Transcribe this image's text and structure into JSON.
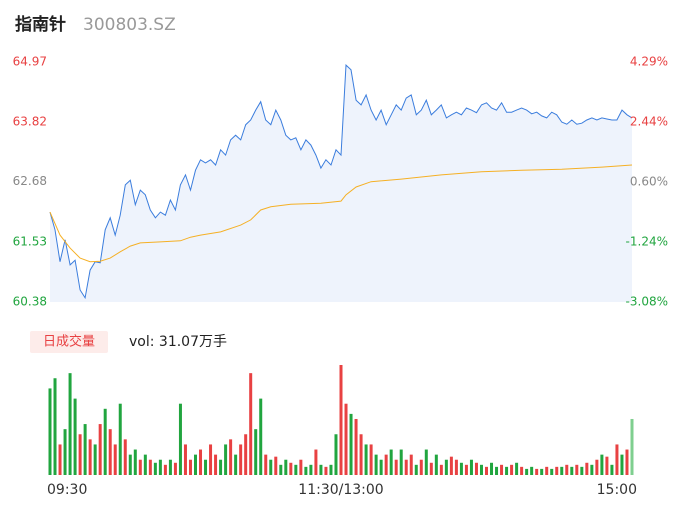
{
  "chart_data": {
    "type": "intraday",
    "title": "指南针",
    "subtitle": "300803.SZ",
    "xlim": [
      0,
      116
    ],
    "xticks": [
      {
        "value": 0,
        "label": "09:30"
      },
      {
        "value": 58,
        "label": "11:30/13:00"
      },
      {
        "value": 116,
        "label": "15:00"
      }
    ],
    "ylim": [
      60.38,
      64.97
    ],
    "yticks": [
      64.97,
      63.82,
      62.68,
      61.53,
      60.38
    ],
    "y2lim": [
      -3.08,
      4.29
    ],
    "y2ticks": [
      {
        "value": 4.29,
        "label": "4.29%"
      },
      {
        "value": 2.44,
        "label": "2.44%"
      },
      {
        "value": 0.6,
        "label": "0.60%"
      },
      {
        "value": -1.24,
        "label": "-1.24%"
      },
      {
        "value": -3.08,
        "label": "-3.08%"
      }
    ],
    "tick_colors": [
      "#e84142",
      "#e84142",
      "#888888",
      "#21a53f",
      "#21a53f"
    ],
    "series": [
      {
        "color": "#3b7ddd",
        "fill": "#eef3fc",
        "values": [
          62.1,
          61.76,
          61.15,
          61.57,
          61.09,
          61.18,
          60.61,
          60.46,
          60.99,
          61.15,
          61.13,
          61.76,
          61.99,
          61.66,
          62.04,
          62.62,
          62.71,
          62.24,
          62.52,
          62.43,
          62.14,
          61.99,
          62.1,
          62.04,
          62.33,
          62.14,
          62.62,
          62.81,
          62.52,
          62.9,
          63.1,
          63.04,
          63.1,
          63.0,
          63.29,
          63.19,
          63.48,
          63.57,
          63.48,
          63.77,
          63.86,
          64.05,
          64.21,
          63.86,
          63.77,
          64.05,
          63.86,
          63.57,
          63.48,
          63.52,
          63.29,
          63.48,
          63.38,
          63.19,
          62.94,
          63.1,
          63.0,
          63.29,
          63.19,
          64.91,
          64.82,
          64.24,
          64.15,
          64.34,
          64.05,
          63.86,
          64.05,
          63.77,
          63.96,
          64.15,
          64.05,
          64.28,
          64.34,
          63.96,
          64.05,
          64.24,
          63.96,
          64.05,
          64.15,
          63.9,
          63.96,
          64.01,
          63.96,
          64.09,
          64.05,
          64.0,
          64.15,
          64.19,
          64.09,
          64.05,
          64.19,
          64.01,
          64.01,
          64.05,
          64.09,
          64.05,
          63.98,
          64.01,
          63.94,
          63.9,
          64.01,
          63.96,
          63.82,
          63.78,
          63.86,
          63.78,
          63.8,
          63.86,
          63.9,
          63.86,
          63.9,
          63.88,
          63.86,
          63.86,
          64.05,
          63.96,
          63.9
        ]
      },
      {
        "color": "#f5b025",
        "x": [
          0,
          2,
          4,
          6,
          8,
          10,
          12,
          14,
          16,
          18,
          22,
          26,
          28,
          30,
          34,
          38,
          40,
          42,
          44,
          48,
          54,
          58,
          59,
          61,
          64,
          70,
          78,
          86,
          94,
          102,
          110,
          116
        ],
        "values": [
          62.1,
          61.66,
          61.41,
          61.22,
          61.15,
          61.16,
          61.22,
          61.34,
          61.45,
          61.51,
          61.53,
          61.55,
          61.62,
          61.66,
          61.72,
          61.85,
          61.95,
          62.14,
          62.2,
          62.25,
          62.27,
          62.31,
          62.43,
          62.58,
          62.68,
          62.73,
          62.81,
          62.87,
          62.9,
          62.92,
          62.96,
          63.0
        ]
      }
    ],
    "volume_label": "日成交量",
    "volume_text": "vol: 31.07万手",
    "volume": {
      "values": [
        3825,
        4275,
        1350,
        2025,
        4500,
        3375,
        1800,
        2250,
        1575,
        1350,
        2250,
        2925,
        2025,
        1350,
        3150,
        1575,
        900,
        1125,
        675,
        900,
        675,
        540,
        675,
        450,
        675,
        540,
        3150,
        1350,
        675,
        900,
        1125,
        675,
        1350,
        900,
        675,
        1350,
        1575,
        900,
        1350,
        1800,
        4500,
        2025,
        3375,
        900,
        675,
        810,
        450,
        675,
        540,
        450,
        675,
        360,
        450,
        1125,
        450,
        360,
        450,
        1800,
        4860,
        3150,
        2700,
        2475,
        1800,
        1350,
        1350,
        900,
        675,
        900,
        1125,
        675,
        1125,
        675,
        900,
        450,
        675,
        1125,
        540,
        900,
        450,
        675,
        810,
        675,
        540,
        450,
        675,
        540,
        450,
        360,
        540,
        360,
        450,
        360,
        450,
        540,
        360,
        270,
        360,
        270,
        270,
        360,
        270,
        360,
        360,
        450,
        360,
        450,
        360,
        540,
        450,
        675,
        900,
        810,
        450,
        1350,
        900,
        1125,
        2475
      ],
      "colors": [
        "#21a53f",
        "#21a53f",
        "#e84142",
        "#21a53f",
        "#21a53f",
        "#21a53f",
        "#e84142",
        "#21a53f",
        "#e84142",
        "#21a53f",
        "#e84142",
        "#21a53f",
        "#e84142",
        "#e84142",
        "#21a53f",
        "#e84142",
        "#21a53f",
        "#21a53f",
        "#e84142",
        "#21a53f",
        "#e84142",
        "#21a53f",
        "#21a53f",
        "#e84142",
        "#21a53f",
        "#e84142",
        "#21a53f",
        "#e84142",
        "#e84142",
        "#21a53f",
        "#e84142",
        "#21a53f",
        "#e84142",
        "#e84142",
        "#21a53f",
        "#21a53f",
        "#e84142",
        "#21a53f",
        "#e84142",
        "#e84142",
        "#e84142",
        "#21a53f",
        "#21a53f",
        "#e84142",
        "#21a53f",
        "#e84142",
        "#21a53f",
        "#21a53f",
        "#e84142",
        "#21a53f",
        "#e84142",
        "#21a53f",
        "#21a53f",
        "#e84142",
        "#21a53f",
        "#e84142",
        "#21a53f",
        "#21a53f",
        "#e84142",
        "#e84142",
        "#21a53f",
        "#e84142",
        "#e84142",
        "#21a53f",
        "#e84142",
        "#21a53f",
        "#21a53f",
        "#e84142",
        "#21a53f",
        "#e84142",
        "#21a53f",
        "#e84142",
        "#e84142",
        "#21a53f",
        "#e84142",
        "#21a53f",
        "#e84142",
        "#21a53f",
        "#e84142",
        "#21a53f",
        "#e84142",
        "#e84142",
        "#21a53f",
        "#e84142",
        "#21a53f",
        "#e84142",
        "#21a53f",
        "#e84142",
        "#21a53f",
        "#21a53f",
        "#e84142",
        "#21a53f",
        "#e84142",
        "#21a53f",
        "#e84142",
        "#21a53f",
        "#21a53f",
        "#e84142",
        "#21a53f",
        "#e84142",
        "#21a53f",
        "#e84142",
        "#21a53f",
        "#e84142",
        "#21a53f",
        "#e84142",
        "#21a53f",
        "#e84142",
        "#21a53f",
        "#e84142",
        "#21a53f",
        "#e84142",
        "#21a53f",
        "#e84142",
        "#21a53f",
        "#e84142",
        "#7fcf8f"
      ]
    }
  }
}
